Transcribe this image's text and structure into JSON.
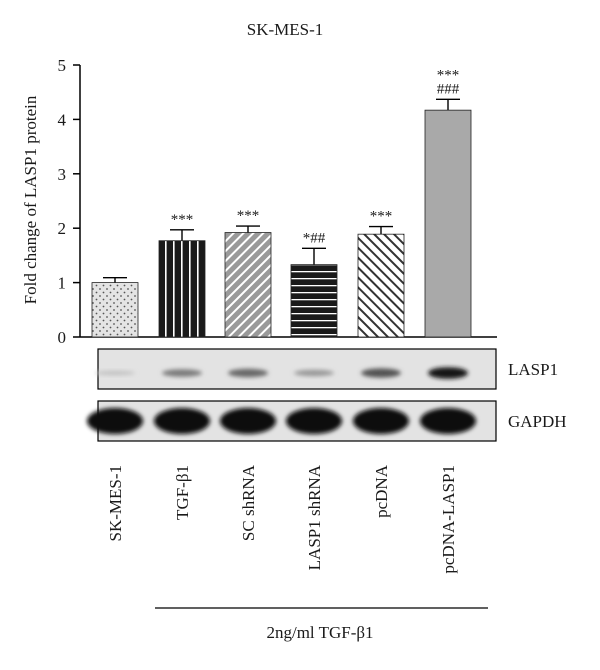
{
  "chart_data": {
    "type": "bar",
    "title": "SK-MES-1",
    "ylabel": "Fold change of LASP1 protein",
    "ylim": [
      0,
      5
    ],
    "yticks": [
      "0",
      "1",
      "2",
      "3",
      "4",
      "5"
    ],
    "categories": [
      "SK-MES-1",
      "TGF-β1",
      "SC shRNA",
      "LASP1 shRNA",
      "pcDNA",
      "pcDNA-LASP1"
    ],
    "values": [
      1.0,
      1.77,
      1.92,
      1.33,
      1.89,
      4.17
    ],
    "errors": [
      0.09,
      0.2,
      0.12,
      0.3,
      0.14,
      0.2
    ],
    "annotations": [
      [],
      [
        "***"
      ],
      [
        "***"
      ],
      [
        "*##"
      ],
      [
        "***"
      ],
      [
        "***",
        "###"
      ]
    ],
    "fills": [
      "dotted",
      "vertical-stripes",
      "diagonal-stripes",
      "horizontal-stripes",
      "diagonal-stripes-light",
      "solid-gray"
    ],
    "blots": [
      {
        "label": "LASP1",
        "intensities": [
          0.08,
          0.45,
          0.55,
          0.3,
          0.65,
          0.95
        ]
      },
      {
        "label": "GAPDH",
        "intensities": [
          1,
          1,
          1,
          1,
          1,
          1
        ]
      }
    ],
    "group_label": "2ng/ml TGF-β1",
    "grid": false
  }
}
